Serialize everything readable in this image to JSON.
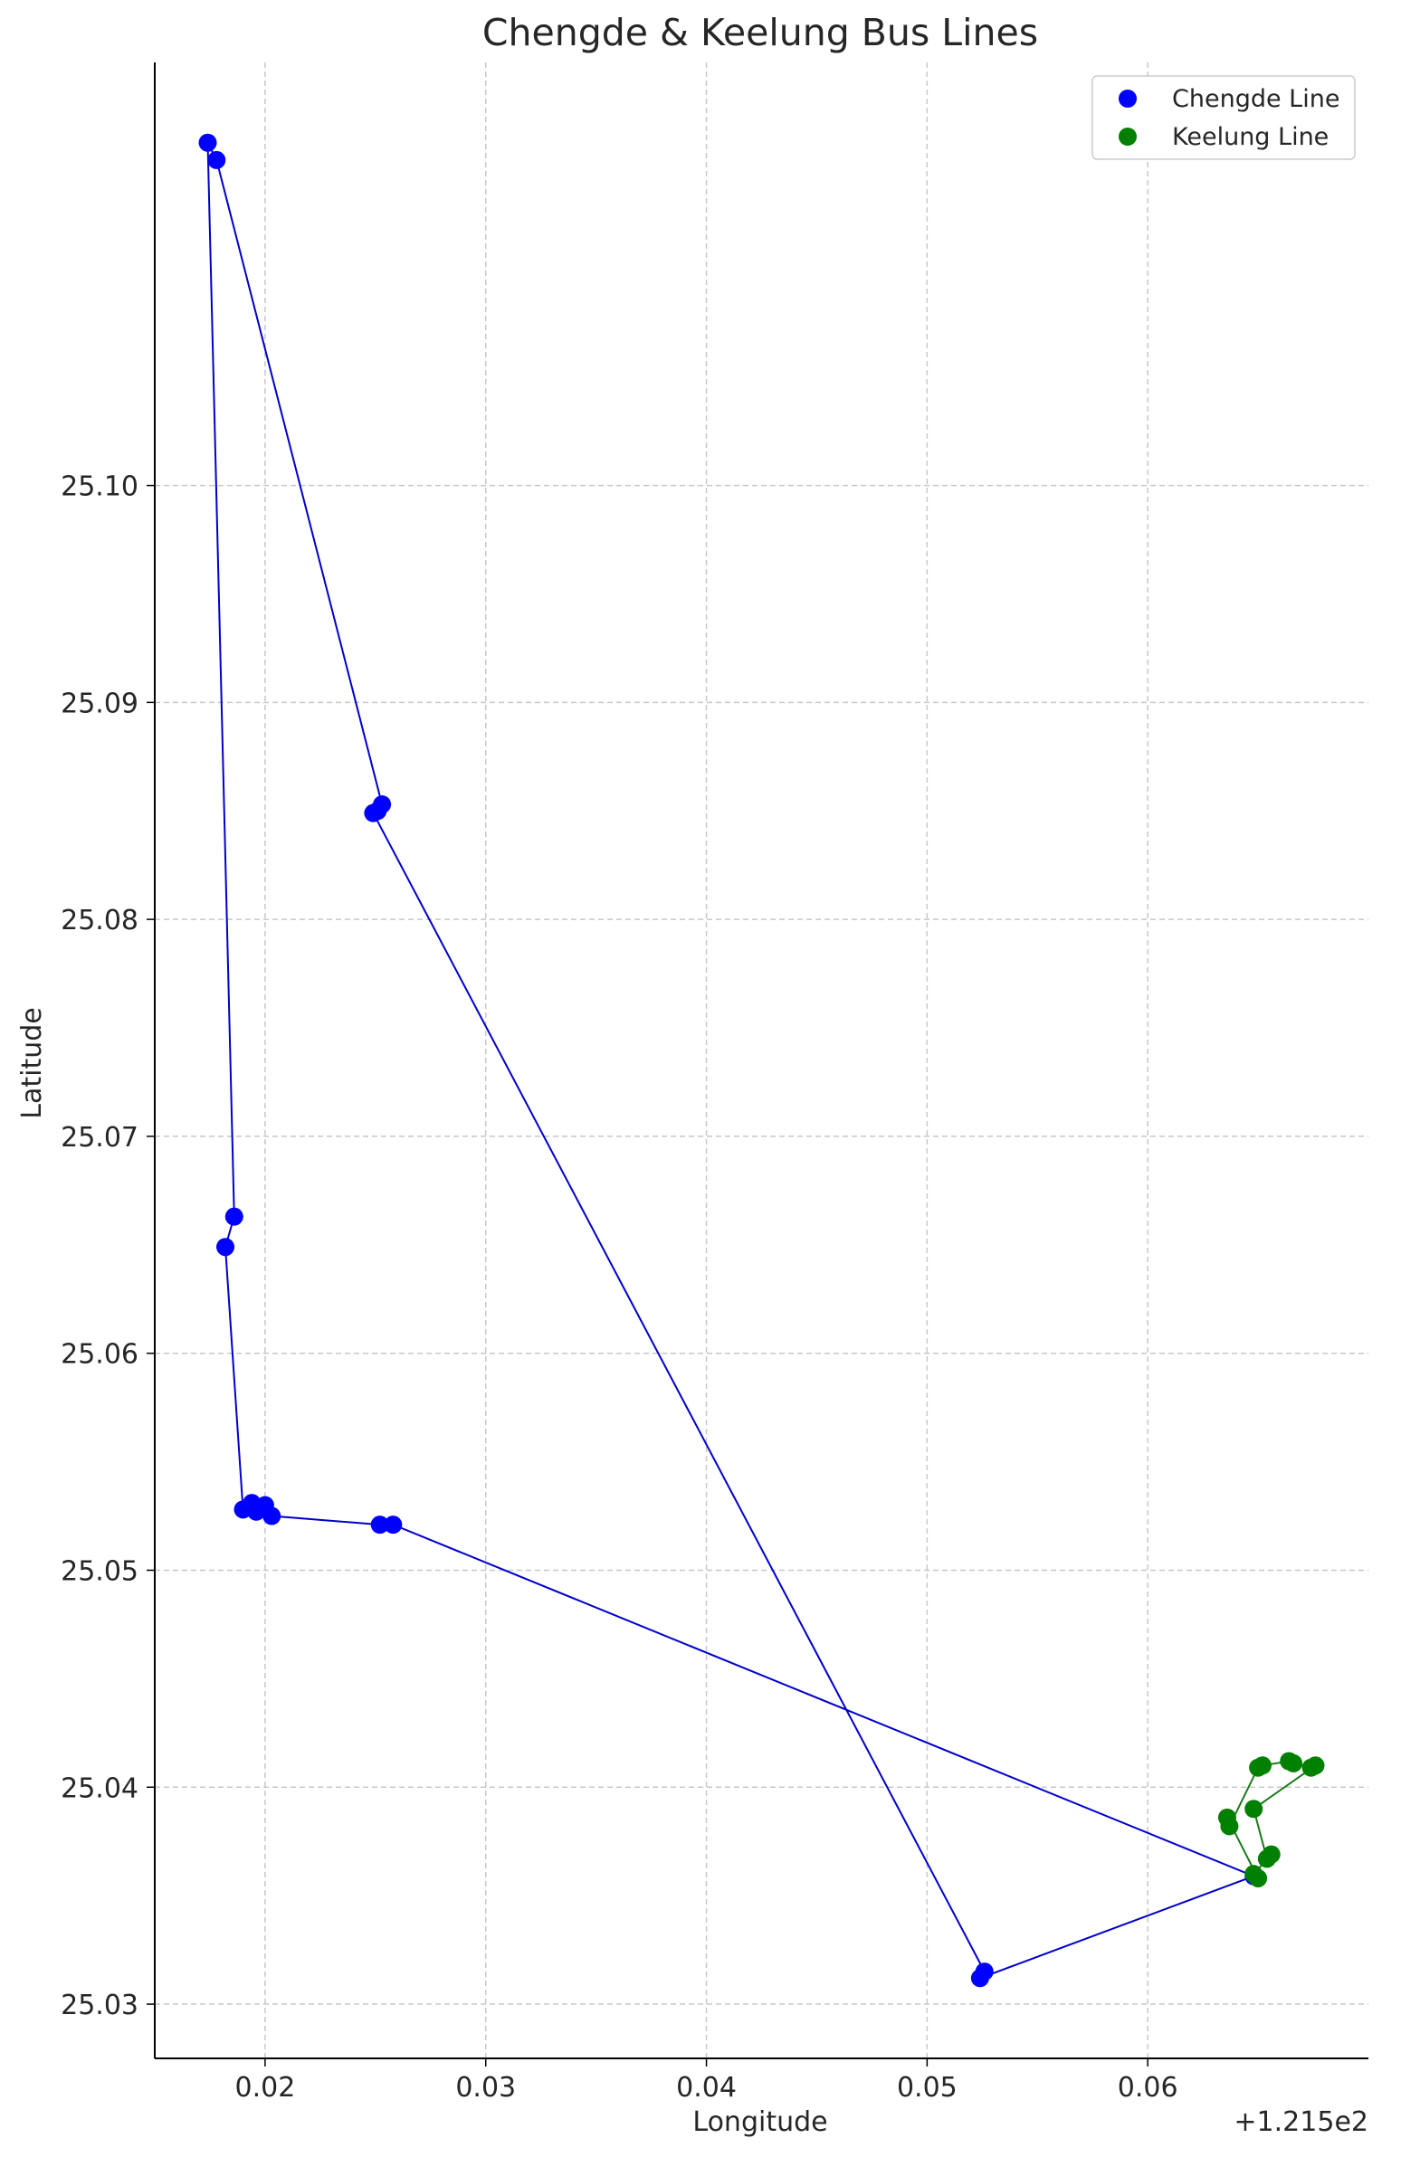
{
  "chart_data": {
    "type": "scatter",
    "title": "Chengde & Keelung Bus Lines",
    "xlabel": "Longitude",
    "ylabel": "Latitude",
    "x_offset_label": "+1.215e2",
    "xlim": [
      121.515,
      121.57
    ],
    "ylim": [
      25.0275,
      25.1195
    ],
    "x_ticks": [
      121.52,
      121.53,
      121.54,
      121.55,
      121.56
    ],
    "x_tick_labels": [
      "0.02",
      "0.03",
      "0.04",
      "0.05",
      "0.06"
    ],
    "y_ticks": [
      25.03,
      25.04,
      25.05,
      25.06,
      25.07,
      25.08,
      25.09,
      25.1
    ],
    "y_tick_labels": [
      "25.03",
      "25.04",
      "25.05",
      "25.06",
      "25.07",
      "25.08",
      "25.09",
      "25.10"
    ],
    "grid": true,
    "legend_position": "top-right",
    "series": [
      {
        "name": "Chengde Line",
        "color": "#0000ff",
        "line_color": "#0000cc",
        "points": [
          {
            "x": 121.5178,
            "y": 25.115
          },
          {
            "x": 121.5174,
            "y": 25.1158
          },
          {
            "x": 121.5186,
            "y": 25.0663
          },
          {
            "x": 121.5182,
            "y": 25.0649
          },
          {
            "x": 121.519,
            "y": 25.0528
          },
          {
            "x": 121.5194,
            "y": 25.0531
          },
          {
            "x": 121.5196,
            "y": 25.0527
          },
          {
            "x": 121.52,
            "y": 25.053
          },
          {
            "x": 121.5203,
            "y": 25.0525
          },
          {
            "x": 121.5252,
            "y": 25.0521
          },
          {
            "x": 121.5258,
            "y": 25.0521
          },
          {
            "x": 121.5648,
            "y": 25.0359
          },
          {
            "x": 121.5524,
            "y": 25.0312
          },
          {
            "x": 121.5526,
            "y": 25.0315
          },
          {
            "x": 121.5249,
            "y": 25.0849
          },
          {
            "x": 121.5251,
            "y": 25.085
          },
          {
            "x": 121.5253,
            "y": 25.0853
          },
          {
            "x": 121.5178,
            "y": 25.115
          }
        ]
      },
      {
        "name": "Keelung Line",
        "color": "#008000",
        "line_color": "#1a7a1a",
        "points": [
          {
            "x": 121.5636,
            "y": 25.0386
          },
          {
            "x": 121.5637,
            "y": 25.0382
          },
          {
            "x": 121.565,
            "y": 25.0409
          },
          {
            "x": 121.5652,
            "y": 25.041
          },
          {
            "x": 121.5664,
            "y": 25.0412
          },
          {
            "x": 121.5666,
            "y": 25.0411
          },
          {
            "x": 121.5674,
            "y": 25.0409
          },
          {
            "x": 121.5676,
            "y": 25.041
          },
          {
            "x": 121.5648,
            "y": 25.039
          },
          {
            "x": 121.5654,
            "y": 25.0367
          },
          {
            "x": 121.5656,
            "y": 25.0369
          },
          {
            "x": 121.5648,
            "y": 25.036
          },
          {
            "x": 121.565,
            "y": 25.0358
          },
          {
            "x": 121.5636,
            "y": 25.0386
          }
        ]
      }
    ]
  }
}
